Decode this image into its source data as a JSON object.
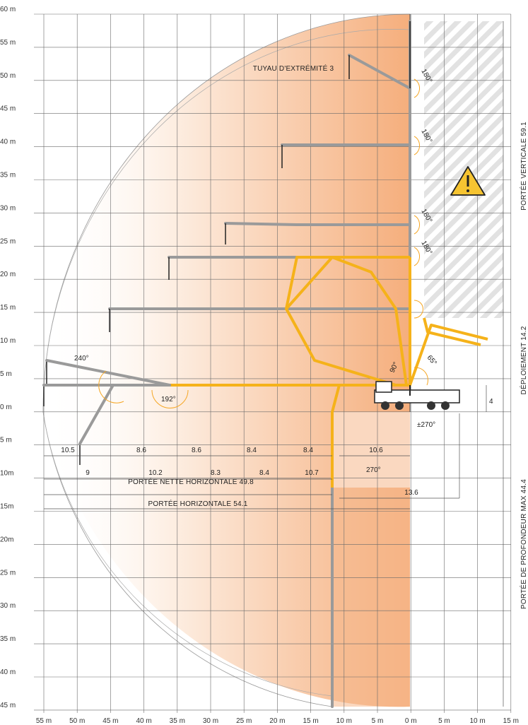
{
  "y_ticks": [
    "60 m",
    "55 m",
    "50 m",
    "45 m",
    "40 m",
    "35 m",
    "30 m",
    "25 m",
    "20 m",
    "15 m",
    "10 m",
    "5 m",
    "0 m",
    "5 m",
    "10m",
    "15m",
    "20m",
    "25 m",
    "30 m",
    "35 m",
    "40 m",
    "45 m"
  ],
  "x_ticks": [
    "55 m",
    "50 m",
    "45 m",
    "40 m",
    "35 m",
    "30 m",
    "25 m",
    "20 m",
    "15 m",
    "10 m",
    "5 m",
    "0 m",
    "5 m",
    "10 m",
    "15 m"
  ],
  "labels": {
    "end_hose": "TUYAU D'EXTRÉMITÉ 3",
    "vertical_reach": "PORTÉE VERTICALE  59.1",
    "unfolding": "DÉPLOIEMENT  14.2",
    "depth_reach": "PORTÉE DE PROFONDEUR MAX  44.4",
    "net_horizontal": "PORTÉE NETTE HORIZONTALE 49.8",
    "horizontal": "PORTÉE HORIZONTALE 54.1"
  },
  "angles": {
    "a180_1": "180°",
    "a180_2": "180°",
    "a180_3": "180°",
    "a180_4": "180°",
    "a240": "240°",
    "a192": "192°",
    "a90": "90°",
    "a65": "65°",
    "a270_rot": "±270°",
    "a270": "270°"
  },
  "dims": {
    "top_row": [
      "10.5",
      "8.6",
      "8.6",
      "8.4",
      "8.4",
      "10.6"
    ],
    "bottom_row": [
      "9",
      "10.2",
      "8.3",
      "8.4",
      "10.7"
    ],
    "d136": "13.6",
    "d4": "4"
  },
  "colors": {
    "boom_orange": "#f5b21a",
    "boom_gray": "#a8a8a8",
    "fan_light": "#fdf0e4",
    "fan_dark": "#f5b385",
    "grid": "#5a5a5a",
    "warning": "#f6c431"
  }
}
